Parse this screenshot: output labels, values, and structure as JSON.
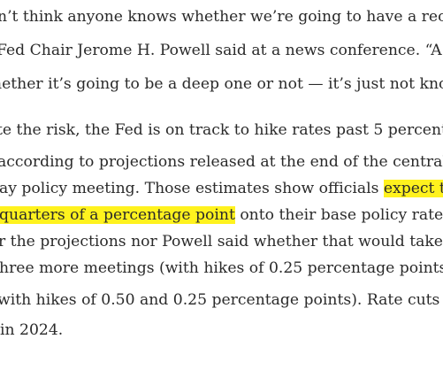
{
  "article": {
    "paragraphs": [
      {
        "lines": [
          [
            {
              "text": "n’t think anyone knows whether we’re going to have a rece"
            }
          ],
          [
            {
              "text": "Fed Chair Jerome H. Powell said at a news conference. “A"
            }
          ],
          [
            {
              "text": "hether it’s going to be a deep one or not — it’s just not kno"
            }
          ]
        ]
      },
      {
        "lines": [
          [
            {
              "text": "te the risk, the Fed is on track to hike rates past 5 percent"
            }
          ],
          [
            {
              "text": "according to projections released at the end of the central"
            }
          ],
          [
            {
              "text": "ay policy meeting. Those estimates show officials "
            },
            {
              "text": "expect t",
              "highlight": true
            }
          ],
          [
            {
              "text": "quarters of a percentage point",
              "highlight": true
            },
            {
              "text": " onto their base policy rate"
            }
          ],
          [
            {
              "text": "r the projections nor Powell said whether that would take"
            }
          ],
          [
            {
              "text": "hree more meetings (with hikes of 0.25 percentage points"
            }
          ],
          [
            {
              "text": "with hikes of 0.50 and 0.25 percentage points). Rate cuts c"
            }
          ],
          [
            {
              "text": "in 2024."
            }
          ]
        ]
      }
    ]
  }
}
